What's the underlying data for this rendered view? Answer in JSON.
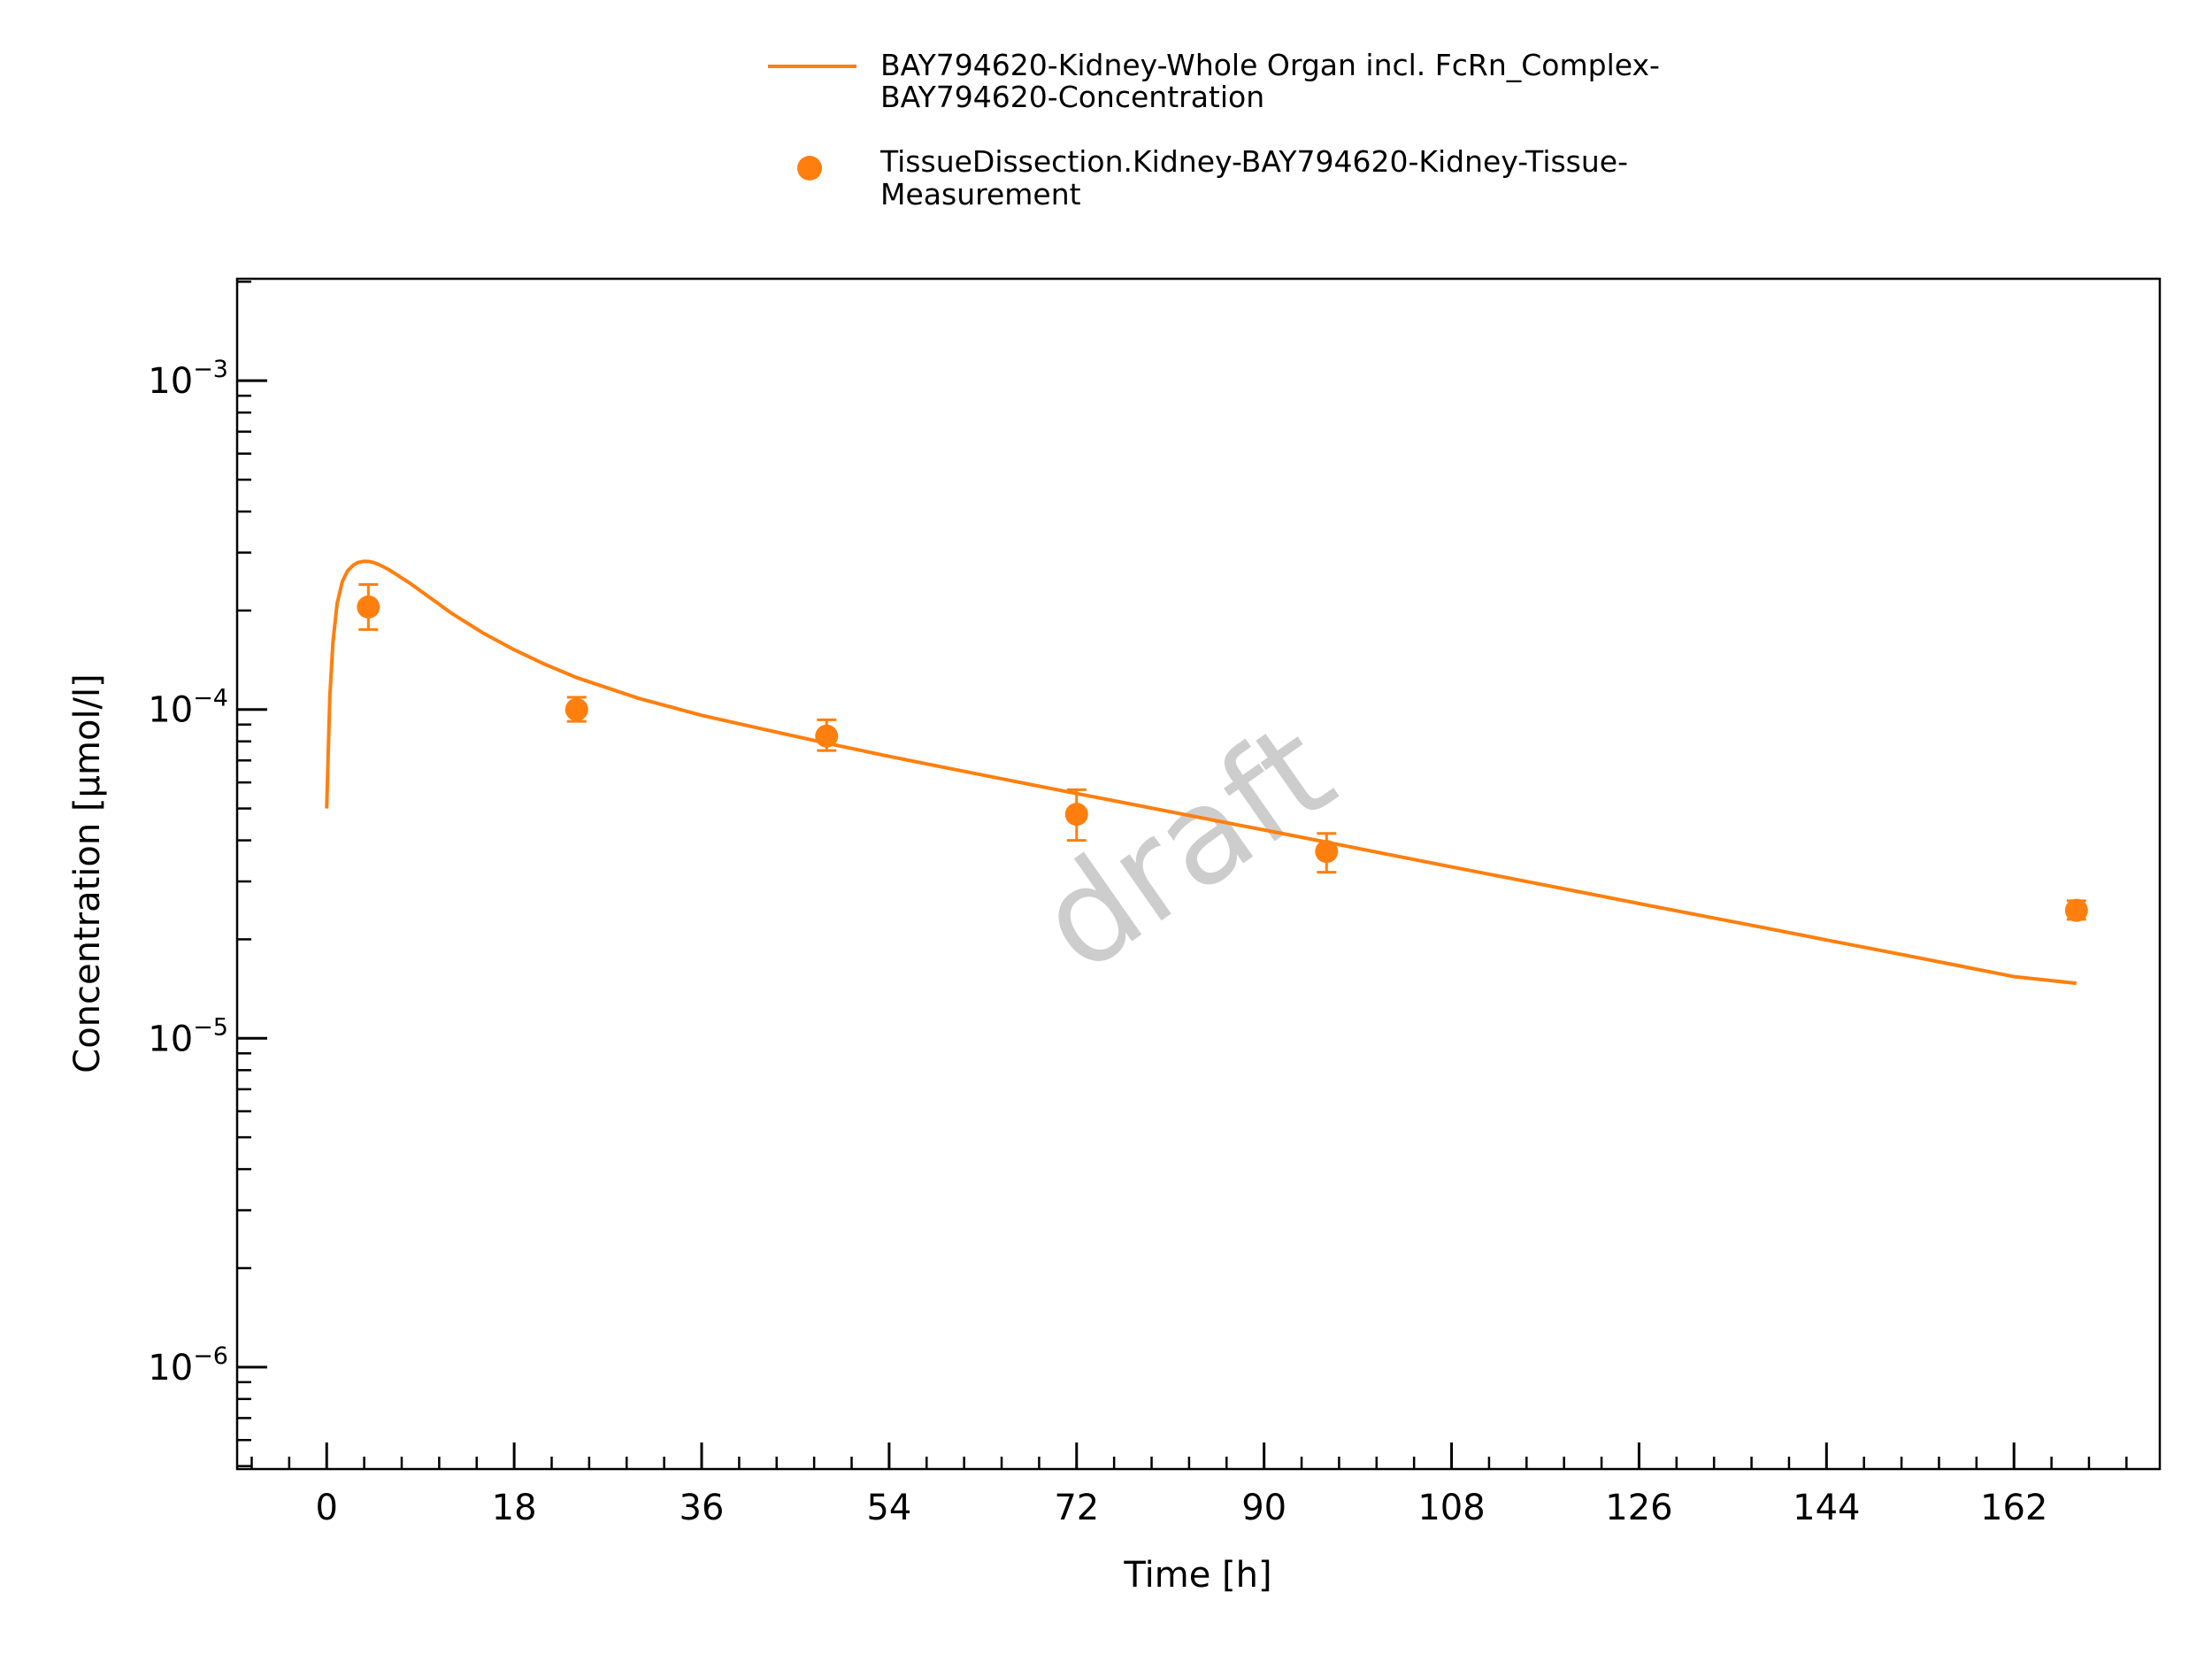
{
  "chart_data": {
    "type": "line",
    "xlabel": "Time [h]",
    "ylabel": "Concentration [µmol/l]",
    "xlim": [
      -8.6,
      176
    ],
    "ylim_log10": [
      -6.31,
      -2.69
    ],
    "y_scale": "log",
    "x_ticks": [
      0,
      18,
      36,
      54,
      72,
      90,
      108,
      126,
      144,
      162
    ],
    "x_minor_step": 3.6,
    "y_ticks": [
      {
        "value": 0.001,
        "base": "10",
        "exp": "−3"
      },
      {
        "value": 0.0001,
        "base": "10",
        "exp": "−4"
      },
      {
        "value": 1e-05,
        "base": "10",
        "exp": "−5"
      },
      {
        "value": 1e-06,
        "base": "10",
        "exp": "−6"
      }
    ],
    "watermark": "draft",
    "legend_position": "top-center",
    "color": "#ff7f0e",
    "series": [
      {
        "name": "BAY794620-Kidney-Whole Organ incl. FcRn_Complex-BAY794620-Concentration",
        "name_lines": [
          "BAY794620-Kidney-Whole Organ incl. FcRn_Complex-",
          "BAY794620-Concentration"
        ],
        "type": "line",
        "x": [
          0,
          0.3,
          0.6,
          1,
          1.5,
          2,
          2.5,
          3,
          3.5,
          4,
          4.5,
          5,
          6,
          8,
          10,
          12,
          15,
          18,
          21,
          24,
          30,
          36,
          42,
          48,
          54,
          60,
          66,
          72,
          78,
          84,
          90,
          96,
          102,
          108,
          114,
          120,
          126,
          132,
          138,
          144,
          150,
          156,
          162,
          168
        ],
        "y": [
          5e-05,
          0.00011,
          0.00016,
          0.00021,
          0.000245,
          0.000264,
          0.000274,
          0.00028,
          0.000282,
          0.000282,
          0.00028,
          0.000276,
          0.000266,
          0.000242,
          0.000218,
          0.000196,
          0.000171,
          0.000152,
          0.000137,
          0.000125,
          0.000108,
          9.6e-05,
          8.7e-05,
          7.9e-05,
          7.2e-05,
          6.6e-05,
          6.05e-05,
          5.55e-05,
          5.1e-05,
          4.68e-05,
          4.3e-05,
          3.95e-05,
          3.62e-05,
          3.32e-05,
          3.05e-05,
          2.8e-05,
          2.57e-05,
          2.36e-05,
          2.17e-05,
          1.99e-05,
          1.83e-05,
          1.68e-05,
          1.54e-05,
          1.47e-05
        ]
      },
      {
        "name": "TissueDissection.Kidney-BAY794620-Kidney-Tissue-Measurement",
        "name_lines": [
          "TissueDissection.Kidney-BAY794620-Kidney-Tissue-",
          "Measurement"
        ],
        "type": "scatter",
        "x": [
          4,
          24,
          48,
          72,
          96,
          168
        ],
        "y": [
          0.000205,
          0.0001,
          8.3e-05,
          4.8e-05,
          3.7e-05,
          2.45e-05
        ],
        "y_err_low": [
          0.000175,
          9.2e-05,
          7.5e-05,
          4e-05,
          3.2e-05,
          2.3e-05
        ],
        "y_err_high": [
          0.00024,
          0.000109,
          9.3e-05,
          5.7e-05,
          4.2e-05,
          2.62e-05
        ]
      }
    ]
  }
}
